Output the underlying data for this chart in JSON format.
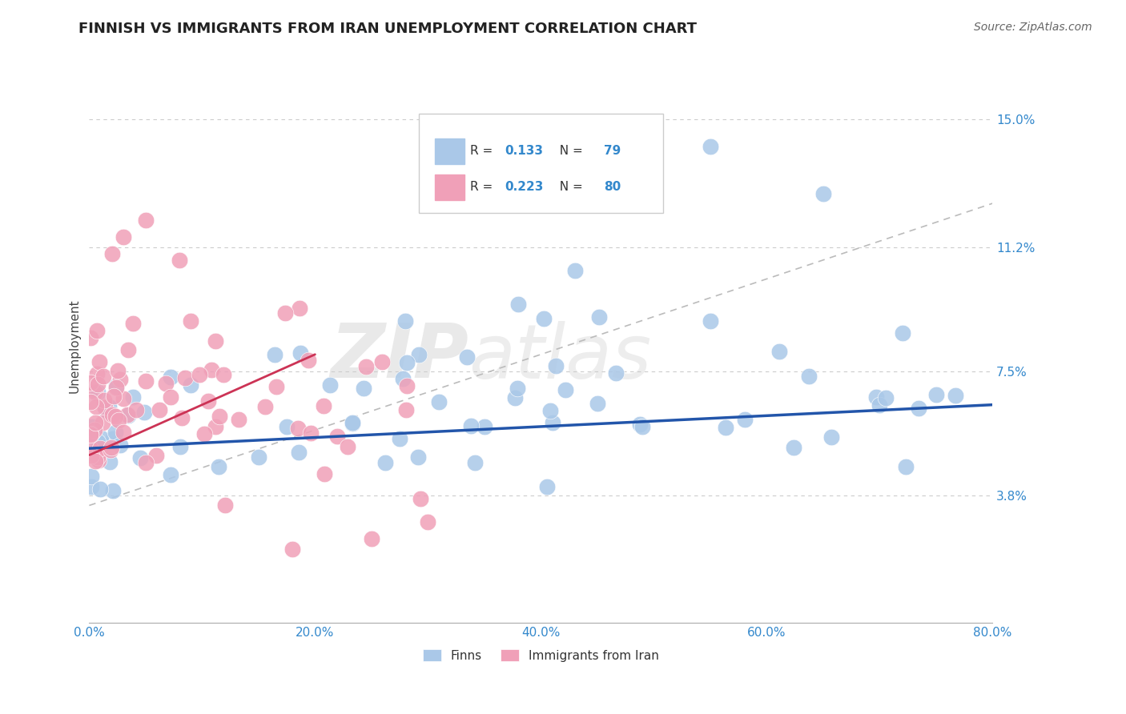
{
  "title": "FINNISH VS IMMIGRANTS FROM IRAN UNEMPLOYMENT CORRELATION CHART",
  "source": "Source: ZipAtlas.com",
  "ylabel": "Unemployment",
  "xlim": [
    0.0,
    80.0
  ],
  "ylim": [
    0.0,
    16.5
  ],
  "yticks": [
    3.8,
    7.5,
    11.2,
    15.0
  ],
  "xticks": [
    0.0,
    20.0,
    40.0,
    60.0,
    80.0
  ],
  "grid_color": "#cccccc",
  "background_color": "#ffffff",
  "finns_color": "#aac8e8",
  "iran_color": "#f0a0b8",
  "finns_line_color": "#2255aa",
  "iran_line_color": "#cc3355",
  "gray_dash_color": "#bbbbbb",
  "finns_R": 0.133,
  "finns_N": 79,
  "iran_R": 0.223,
  "iran_N": 80,
  "legend_label_finns": "Finns",
  "legend_label_iran": "Immigrants from Iran",
  "watermark_text": "ZIP",
  "watermark_text2": "atlas",
  "finns_line_x0": 0.0,
  "finns_line_x1": 80.0,
  "finns_line_y0": 5.2,
  "finns_line_y1": 6.5,
  "iran_line_x0": 0.0,
  "iran_line_x1": 20.0,
  "iran_line_y0": 5.0,
  "iran_line_y1": 8.0,
  "gray_line_x0": 0.0,
  "gray_line_x1": 80.0,
  "gray_line_y0": 3.5,
  "gray_line_y1": 12.5
}
